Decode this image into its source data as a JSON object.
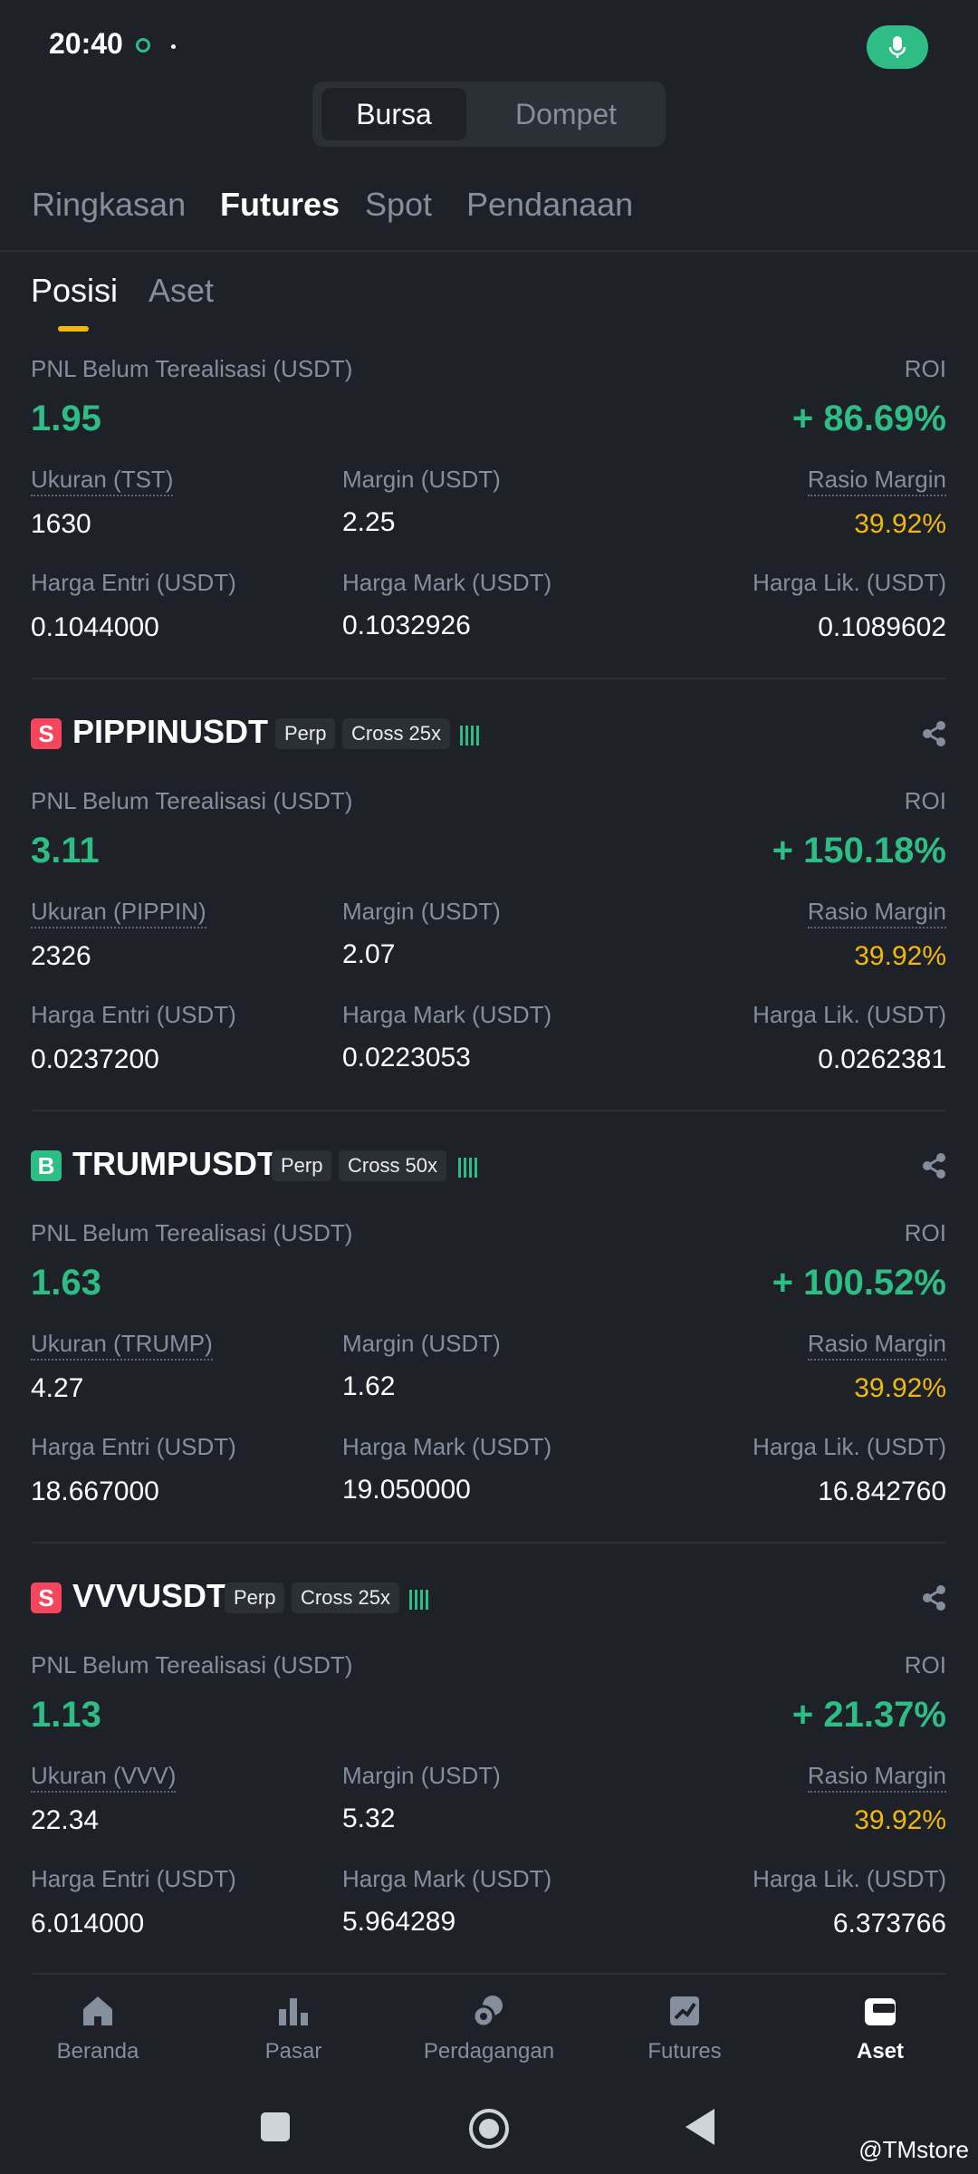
{
  "status": {
    "time": "20:40"
  },
  "segment": {
    "active": "Bursa",
    "inactive": "Dompet"
  },
  "top_tabs": [
    "Ringkasan",
    "Futures",
    "Spot",
    "Pendanaan"
  ],
  "sub_tabs": [
    "Posisi",
    "Aset"
  ],
  "labels": {
    "pnl": "PNL Belum Terealisasi (USDT)",
    "roi": "ROI",
    "margin": "Margin (USDT)",
    "ratio": "Rasio Margin",
    "entry": "Harga Entri (USDT)",
    "mark": "Harga Mark (USDT)",
    "liq": "Harga Lik. (USDT)",
    "perp": "Perp"
  },
  "positions": [
    {
      "pnl": "1.95",
      "roi": "+ 86.69%",
      "size_label": "Ukuran (TST)",
      "size": "1630",
      "margin": "2.25",
      "ratio": "39.92%",
      "entry": "0.1044000",
      "mark": "0.1032926",
      "liq": "0.1089602"
    },
    {
      "side": "S",
      "symbol": "PIPPINUSDT",
      "leverage": "Cross 25x",
      "pnl": "3.11",
      "roi": "+ 150.18%",
      "size_label": "Ukuran (PIPPIN)",
      "size": "2326",
      "margin": "2.07",
      "ratio": "39.92%",
      "entry": "0.0237200",
      "mark": "0.0223053",
      "liq": "0.0262381"
    },
    {
      "side": "B",
      "symbol": "TRUMPUSDT",
      "leverage": "Cross 50x",
      "pnl": "1.63",
      "roi": "+ 100.52%",
      "size_label": "Ukuran (TRUMP)",
      "size": "4.27",
      "margin": "1.62",
      "ratio": "39.92%",
      "entry": "18.667000",
      "mark": "19.050000",
      "liq": "16.842760"
    },
    {
      "side": "S",
      "symbol": "VVVUSDT",
      "leverage": "Cross 25x",
      "pnl": "1.13",
      "roi": "+ 21.37%",
      "size_label": "Ukuran (VVV)",
      "size": "22.34",
      "margin": "5.32",
      "ratio": "39.92%",
      "entry": "6.014000",
      "mark": "5.964289",
      "liq": "6.373766"
    }
  ],
  "nav": [
    "Beranda",
    "Pasar",
    "Perdagangan",
    "Futures",
    "Aset"
  ],
  "watermark": "@TMstore",
  "colors": {
    "bg": "#1e2128",
    "green": "#2ebd85",
    "red": "#f6465d",
    "yellow": "#f0b90b",
    "muted": "#848e9c"
  }
}
